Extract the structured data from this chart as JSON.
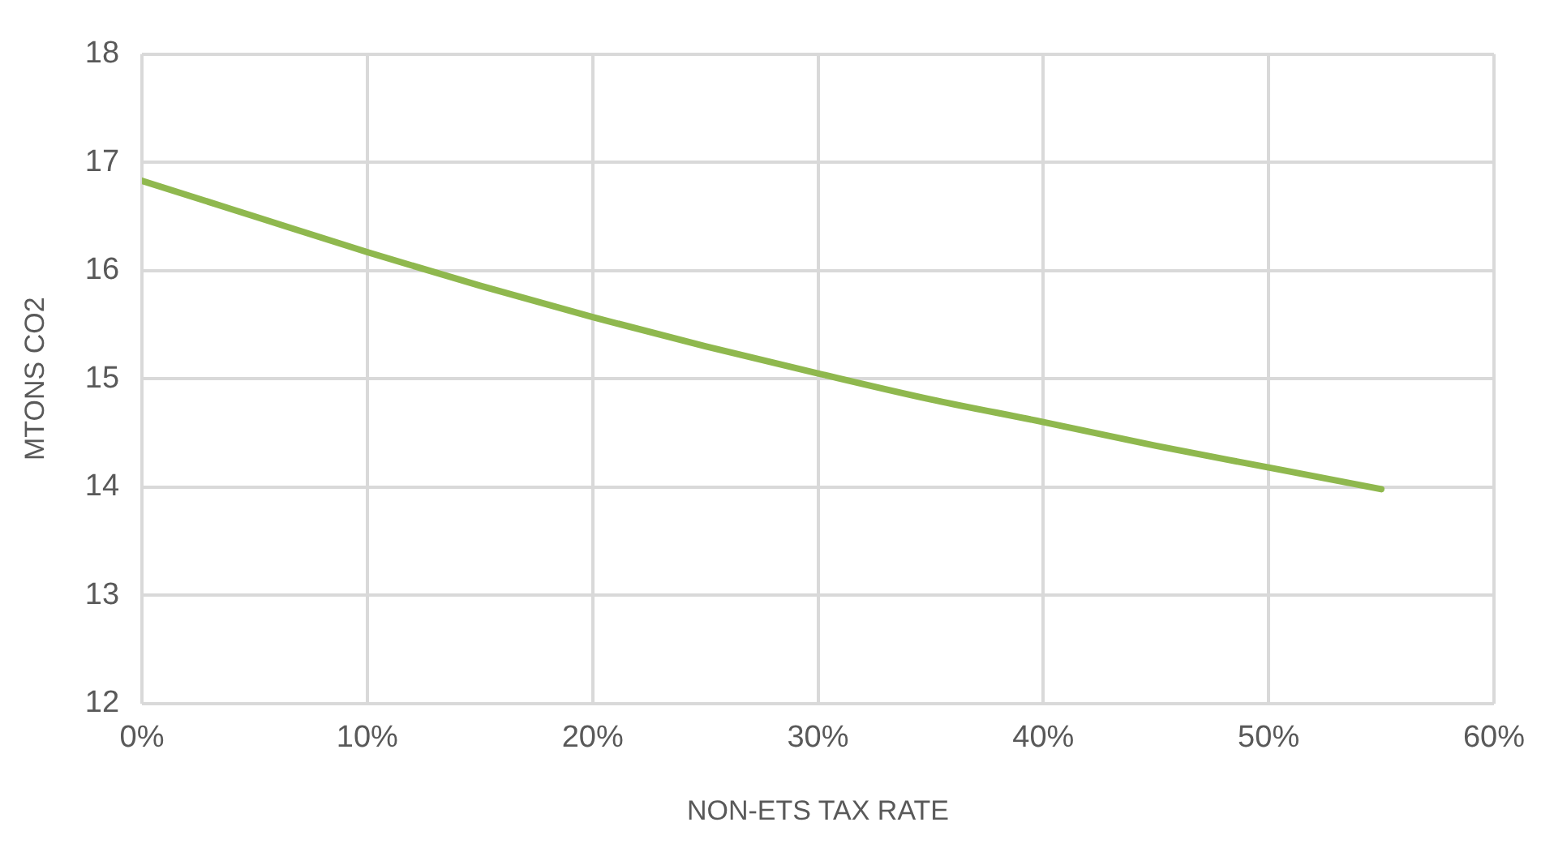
{
  "chart_data": {
    "type": "line",
    "xlabel": "NON-ETS TAX RATE",
    "ylabel": "MTONS CO2",
    "x": [
      0,
      5,
      10,
      15,
      20,
      25,
      30,
      35,
      40,
      45,
      50,
      55
    ],
    "series": [
      {
        "color": "#8fb84e",
        "values": [
          16.83,
          16.5,
          16.17,
          15.86,
          15.57,
          15.3,
          15.05,
          14.81,
          14.6,
          14.38,
          14.18,
          13.98
        ]
      }
    ],
    "xlim": [
      0,
      60
    ],
    "xticks": [
      {
        "value": 0,
        "label": "0%"
      },
      {
        "value": 10,
        "label": "10%"
      },
      {
        "value": 20,
        "label": "20%"
      },
      {
        "value": 30,
        "label": "30%"
      },
      {
        "value": 40,
        "label": "40%"
      },
      {
        "value": 50,
        "label": "50%"
      },
      {
        "value": 60,
        "label": "60%"
      }
    ],
    "ylim": [
      12,
      18
    ],
    "yticks": [
      12,
      13,
      14,
      15,
      16,
      17,
      18
    ],
    "grid": true,
    "marker": "none",
    "line_style": "solid"
  }
}
